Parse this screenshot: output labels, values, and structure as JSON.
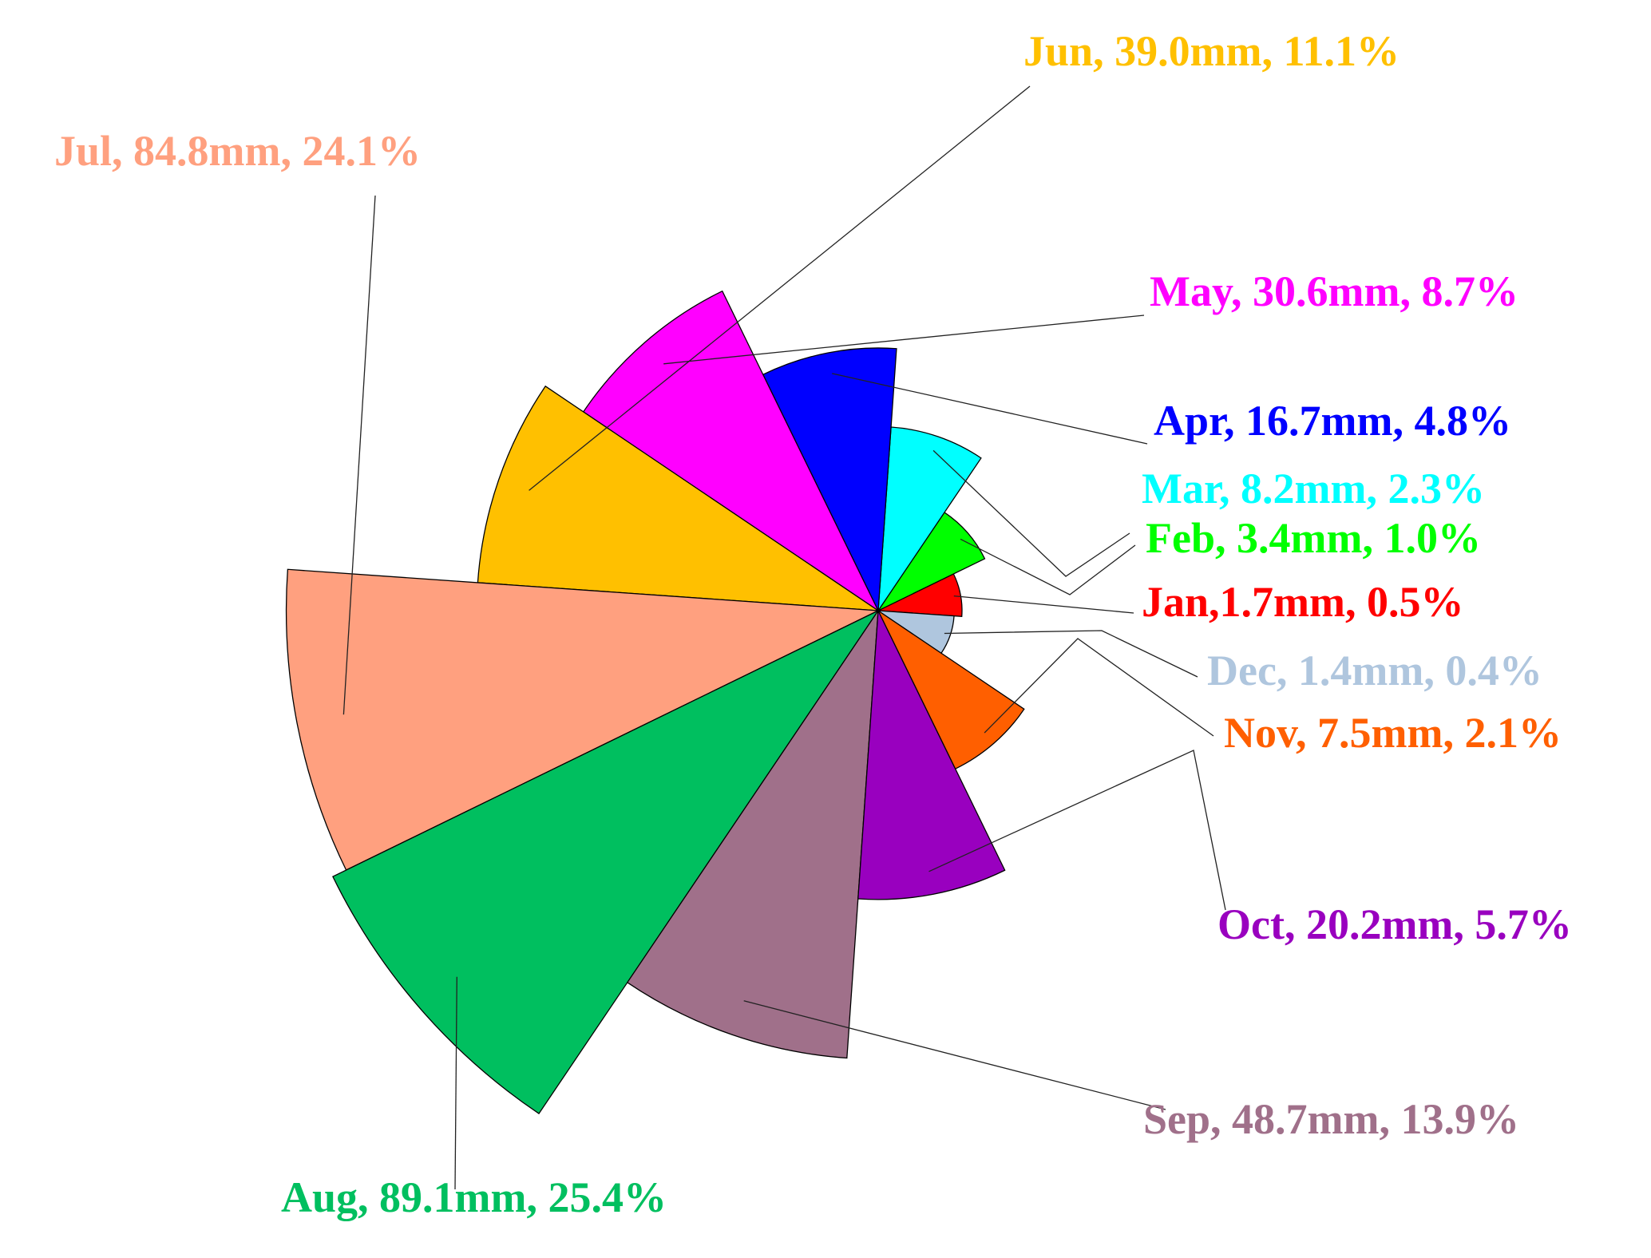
{
  "chart_data": {
    "type": "pie",
    "title": "",
    "variant": "rose (radius proportional to value, equal-angle wedges)",
    "unit": "mm",
    "slices": [
      {
        "month": "Jan",
        "value": 1.7,
        "percent": 0.5,
        "label": "Jan,1.7mm, 0.5%",
        "color": "#FF0000"
      },
      {
        "month": "Feb",
        "value": 3.4,
        "percent": 1.0,
        "label": "Feb, 3.4mm, 1.0%",
        "color": "#00FF00"
      },
      {
        "month": "Mar",
        "value": 8.2,
        "percent": 2.3,
        "label": "Mar, 8.2mm, 2.3%",
        "color": "#00FFFF"
      },
      {
        "month": "Apr",
        "value": 16.7,
        "percent": 4.8,
        "label": "Apr, 16.7mm, 4.8%",
        "color": "#0000FF"
      },
      {
        "month": "May",
        "value": 30.6,
        "percent": 8.7,
        "label": "May, 30.6mm, 8.7%",
        "color": "#FF00FF"
      },
      {
        "month": "Jun",
        "value": 39.0,
        "percent": 11.1,
        "label": "Jun, 39.0mm, 11.1%",
        "color": "#FFC000"
      },
      {
        "month": "Jul",
        "value": 84.8,
        "percent": 24.1,
        "label": "Jul, 84.8mm, 24.1%",
        "color": "#FFA07F"
      },
      {
        "month": "Aug",
        "value": 89.1,
        "percent": 25.4,
        "label": "Aug, 89.1mm, 25.4%",
        "color": "#00BF5F"
      },
      {
        "month": "Sep",
        "value": 48.7,
        "percent": 13.9,
        "label": "Sep, 48.7mm, 13.9%",
        "color": "#A0708A"
      },
      {
        "month": "Oct",
        "value": 20.2,
        "percent": 5.7,
        "label": "Oct, 20.2mm, 5.7%",
        "color": "#9900BF"
      },
      {
        "month": "Nov",
        "value": 7.5,
        "percent": 2.1,
        "label": "Nov, 7.5mm, 2.1%",
        "color": "#FF5F00"
      },
      {
        "month": "Dec",
        "value": 1.4,
        "percent": 0.4,
        "label": "Dec, 1.4mm, 0.4%",
        "color": "#AFC6DE"
      }
    ]
  }
}
